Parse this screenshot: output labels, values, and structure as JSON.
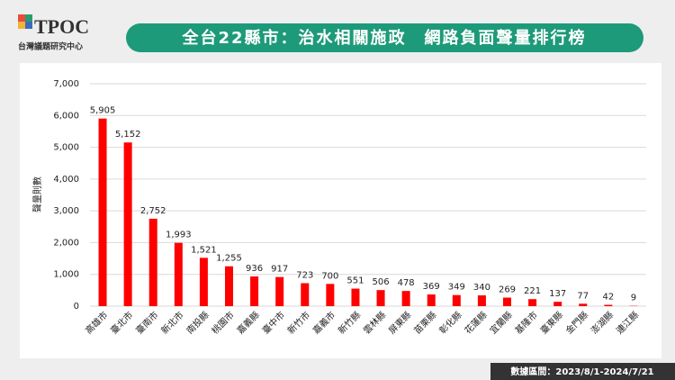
{
  "header": {
    "logo": "TPOC",
    "organization": "台灣議題研究中心",
    "footer": "數據區間：2023/8/1-2024/7/21"
  },
  "chart_data": {
    "type": "bar",
    "title": "全台22縣市：治水相關施政　網路負面聲量排行榜",
    "y_label": "聲量則數",
    "categories": [
      "高雄市",
      "臺北市",
      "臺南市",
      "新北市",
      "南投縣",
      "桃園市",
      "嘉義縣",
      "臺中市",
      "新竹市",
      "嘉義市",
      "新竹縣",
      "雲林縣",
      "屏東縣",
      "苗栗縣",
      "彰化縣",
      "花蓮縣",
      "宜蘭縣",
      "基隆市",
      "臺東縣",
      "金門縣",
      "澎湖縣",
      "連江縣"
    ],
    "values": [
      5905,
      5152,
      2752,
      1993,
      1521,
      1255,
      936,
      917,
      723,
      700,
      551,
      506,
      478,
      369,
      349,
      340,
      269,
      221,
      137,
      77,
      42,
      9
    ],
    "value_labels": [
      "5,905",
      "5,152",
      "2,752",
      "1,993",
      "1,521",
      "1,255",
      "936",
      "917",
      "723",
      "700",
      "551",
      "506",
      "478",
      "369",
      "349",
      "340",
      "269",
      "221",
      "137",
      "77",
      "42",
      "9"
    ],
    "color": "#ff0000",
    "ylim": [
      0,
      7000
    ],
    "yticks": [
      0,
      {
        "value": 1000,
        "label": "1,000"
      },
      {
        "value": 2000,
        "label": "2,000"
      },
      {
        "value": 3000,
        "label": "3,000"
      },
      {
        "value": 4000,
        "label": "4,000"
      },
      {
        "value": 5000,
        "label": "5,000"
      },
      {
        "value": 6000,
        "label": "6,000"
      },
      {
        "value": 7000,
        "label": "7,000"
      }
    ],
    "grid": true
  }
}
